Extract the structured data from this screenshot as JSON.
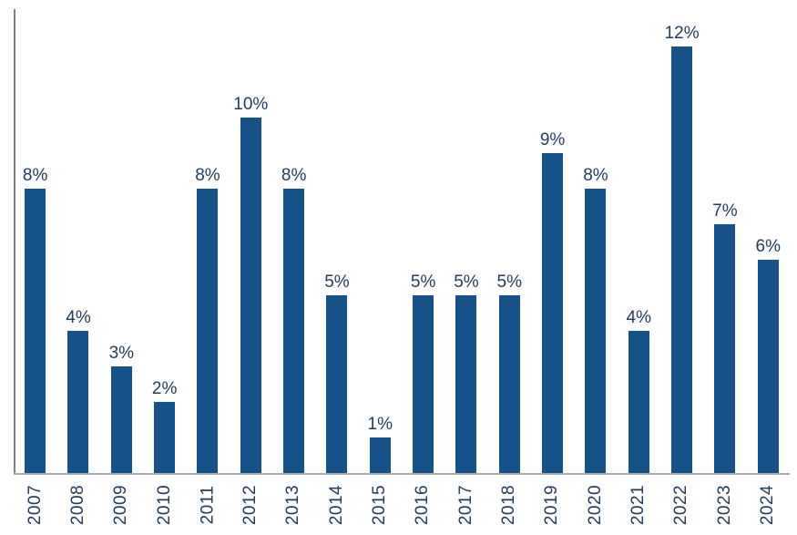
{
  "chart_data": {
    "type": "bar",
    "categories": [
      "2007",
      "2008",
      "2009",
      "2010",
      "2011",
      "2012",
      "2013",
      "2014",
      "2015",
      "2016",
      "2017",
      "2018",
      "2019",
      "2020",
      "2021",
      "2022",
      "2023",
      "2024"
    ],
    "values": [
      8,
      4,
      3,
      2,
      8,
      10,
      8,
      5,
      1,
      5,
      5,
      5,
      9,
      8,
      4,
      12,
      7,
      6
    ],
    "data_labels": [
      "8%",
      "4%",
      "3%",
      "2%",
      "8%",
      "10%",
      "8%",
      "5%",
      "1%",
      "5%",
      "5%",
      "5%",
      "9%",
      "8%",
      "4%",
      "12%",
      "7%",
      "6%"
    ],
    "value_suffix": "%",
    "title": "",
    "xlabel": "",
    "ylabel": "",
    "ylim": [
      0,
      13
    ],
    "grid": false,
    "legend": false,
    "colors": {
      "bar_fill": "#15528A",
      "label_text": "#243C5C",
      "y_axis_line": "#7F7F7F",
      "x_axis_line": "#A6ACB2"
    }
  }
}
